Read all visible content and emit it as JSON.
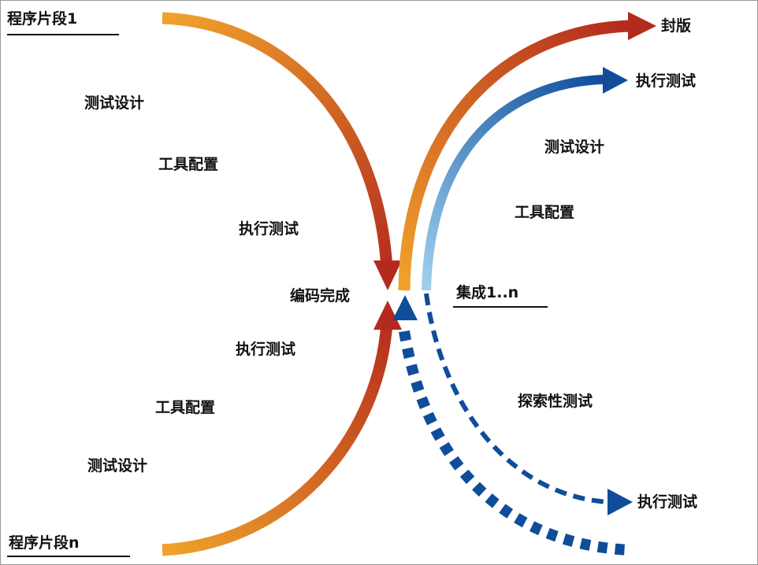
{
  "colors": {
    "orange": "#f0a32c",
    "dark_red": "#b42a1d",
    "blue_dark": "#0f4d9b",
    "blue_light": "#9fd1ee",
    "text": "#111111"
  },
  "left": {
    "top_header": "程序片段1",
    "bottom_header": "程序片段n",
    "upper_steps": [
      "测试设计",
      "工具配置",
      "执行测试"
    ],
    "lower_steps": [
      "执行测试",
      "工具配置",
      "测试设计"
    ],
    "center": "编码完成"
  },
  "right": {
    "release": "封版",
    "execute_top": "执行测试",
    "steps": [
      "测试设计",
      "工具配置"
    ],
    "integration_header": "集成1..n",
    "exploratory": "探索性测试",
    "execute_bottom": "执行测试"
  }
}
